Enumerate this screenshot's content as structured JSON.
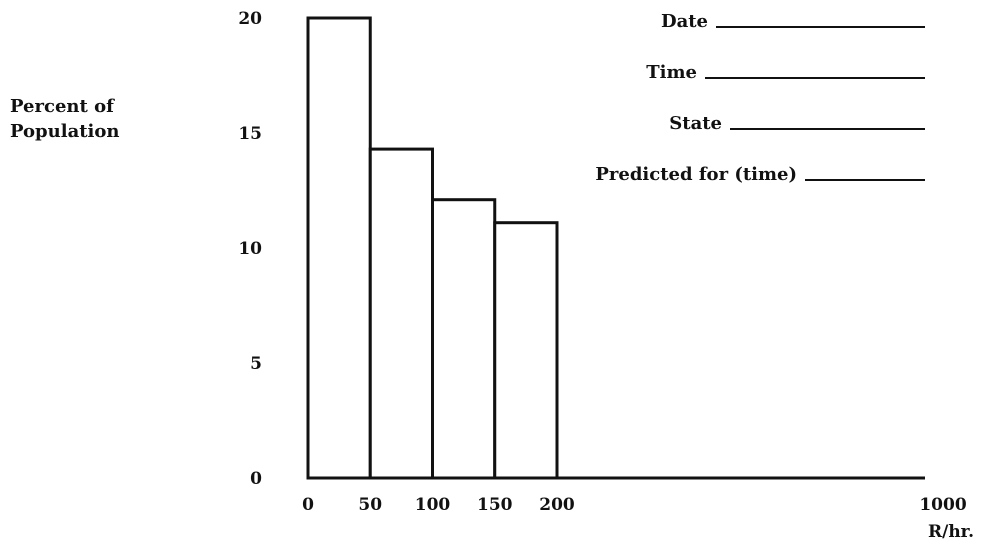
{
  "chart_data": {
    "type": "bar",
    "ylabel_lines": [
      "Percent of",
      "Population"
    ],
    "xunit": "R/hr.",
    "yticks": [
      0,
      5,
      10,
      15,
      20
    ],
    "xticks": [
      0,
      50,
      100,
      150,
      200,
      1000
    ],
    "ylim": [
      0,
      20
    ],
    "bins": [
      {
        "start": 0,
        "end": 50,
        "value": 20
      },
      {
        "start": 50,
        "end": 100,
        "value": 14.3
      },
      {
        "start": 100,
        "end": 150,
        "value": 12.1
      },
      {
        "start": 150,
        "end": 200,
        "value": 11.1
      }
    ],
    "grid": false
  },
  "form_fields": [
    {
      "label": "Date"
    },
    {
      "label": "Time"
    },
    {
      "label": "State"
    },
    {
      "label": "Predicted for (time)"
    }
  ]
}
